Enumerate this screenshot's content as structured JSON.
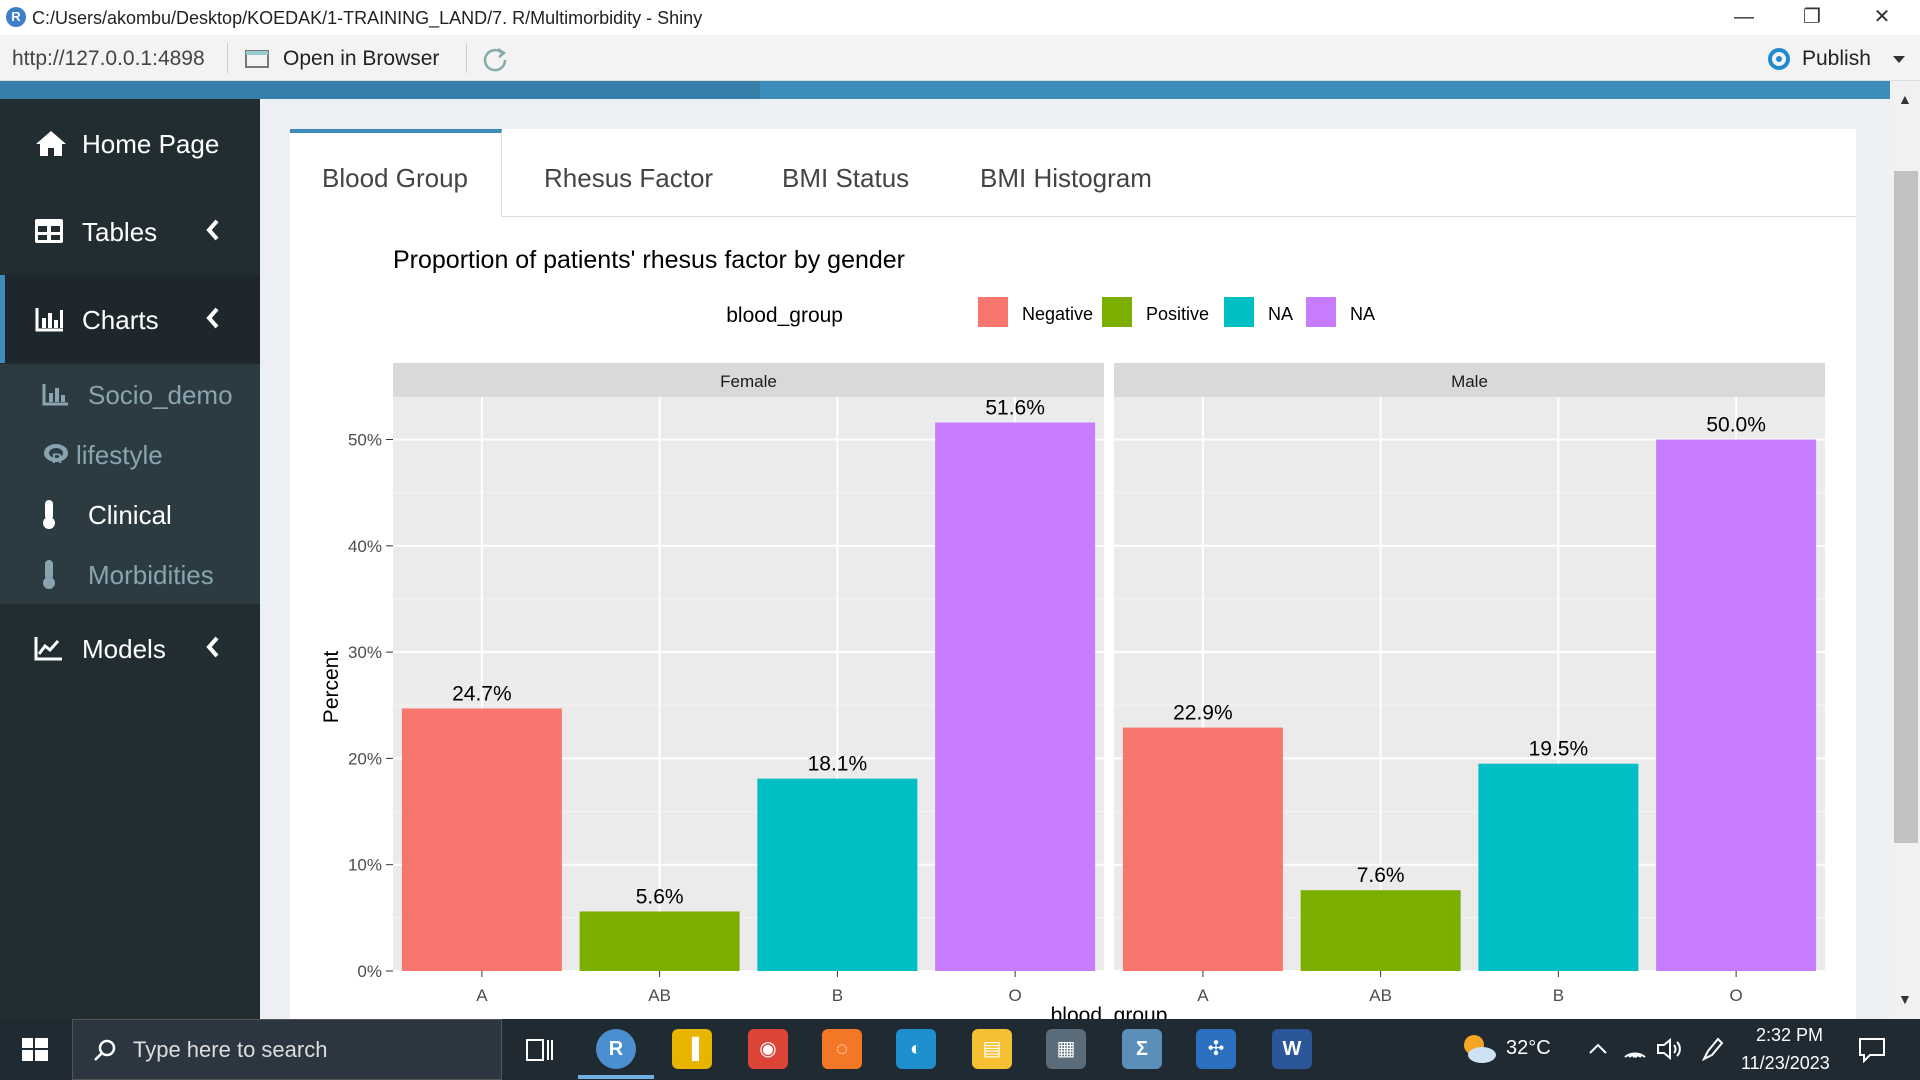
{
  "window": {
    "title": "C:/Users/akombu/Desktop/KOEDAK/1-TRAINING_LAND/7. R/Multimorbidity - Shiny",
    "r_logo": "R",
    "minimize": "—",
    "maximize": "❐",
    "close": "✕"
  },
  "addressbar": {
    "url": "http://127.0.0.1:4898",
    "open_in_browser": "Open in Browser",
    "publish": "Publish"
  },
  "sidebar": {
    "items": [
      {
        "label": "Home Page",
        "icon": "home-icon"
      },
      {
        "label": "Tables",
        "icon": "table-icon"
      },
      {
        "label": "Charts",
        "icon": "bar-chart-icon"
      },
      {
        "label": "Models",
        "icon": "line-chart-icon"
      }
    ],
    "subitems": [
      {
        "label": "Socio_demo",
        "icon": "bar-chart-icon"
      },
      {
        "label": "lifestyle",
        "icon": "r-project-icon"
      },
      {
        "label": "Clinical",
        "icon": "thermometer-icon"
      },
      {
        "label": "Morbidities",
        "icon": "thermometer-icon"
      }
    ]
  },
  "tabs": [
    {
      "label": "Blood Group"
    },
    {
      "label": "Rhesus Factor"
    },
    {
      "label": "BMI Status"
    },
    {
      "label": "BMI Histogram"
    }
  ],
  "chart_data": {
    "type": "bar",
    "title": "Proportion of patients' rhesus factor by gender",
    "xlabel": "blood_group",
    "ylabel": "Percent",
    "legend_title": "blood_group",
    "legend_position": "top",
    "legend": [
      "Negative",
      "Positive",
      "NA",
      "NA"
    ],
    "legend_colors": [
      "#F8766D",
      "#7CAE00",
      "#00BFC4",
      "#C77CFF"
    ],
    "categories": [
      "A",
      "AB",
      "B",
      "O"
    ],
    "bar_colors": [
      "#F8766D",
      "#7CAE00",
      "#00BFC4",
      "#C77CFF"
    ],
    "yticks": [
      "0%",
      "10%",
      "20%",
      "30%",
      "40%",
      "50%"
    ],
    "ylim": [
      0,
      54
    ],
    "grid": true,
    "facets": [
      {
        "name": "Female",
        "values": [
          24.7,
          5.6,
          18.1,
          51.6
        ],
        "labels": [
          "24.7%",
          "5.6%",
          "18.1%",
          "51.6%"
        ]
      },
      {
        "name": "Male",
        "values": [
          22.9,
          7.6,
          19.5,
          50.0
        ],
        "labels": [
          "22.9%",
          "7.6%",
          "19.5%",
          "50.0%"
        ]
      }
    ]
  },
  "taskbar": {
    "search_placeholder": "Type here to search",
    "weather": "32°C",
    "time": "2:32 PM",
    "date": "11/23/2023",
    "apps": [
      {
        "name": "rstudio",
        "glyph": "R",
        "color": "#4a8fcf"
      },
      {
        "name": "power-bi",
        "glyph": "▐",
        "color": "#e8b400"
      },
      {
        "name": "chrome",
        "glyph": "◉",
        "color": "#db4437"
      },
      {
        "name": "jupyter",
        "glyph": "◌",
        "color": "#f37726"
      },
      {
        "name": "edge",
        "glyph": "◐",
        "color": "#1e8fce"
      },
      {
        "name": "file-explorer",
        "glyph": "▤",
        "color": "#f5c033"
      },
      {
        "name": "microsoft-store",
        "glyph": "▦",
        "color": "#5a6b7a"
      },
      {
        "name": "math-app",
        "glyph": "Σ",
        "color": "#5b8fb9"
      },
      {
        "name": "tableau",
        "glyph": "✣",
        "color": "#2a6fc0"
      },
      {
        "name": "word",
        "glyph": "W",
        "color": "#2b579a"
      }
    ]
  }
}
